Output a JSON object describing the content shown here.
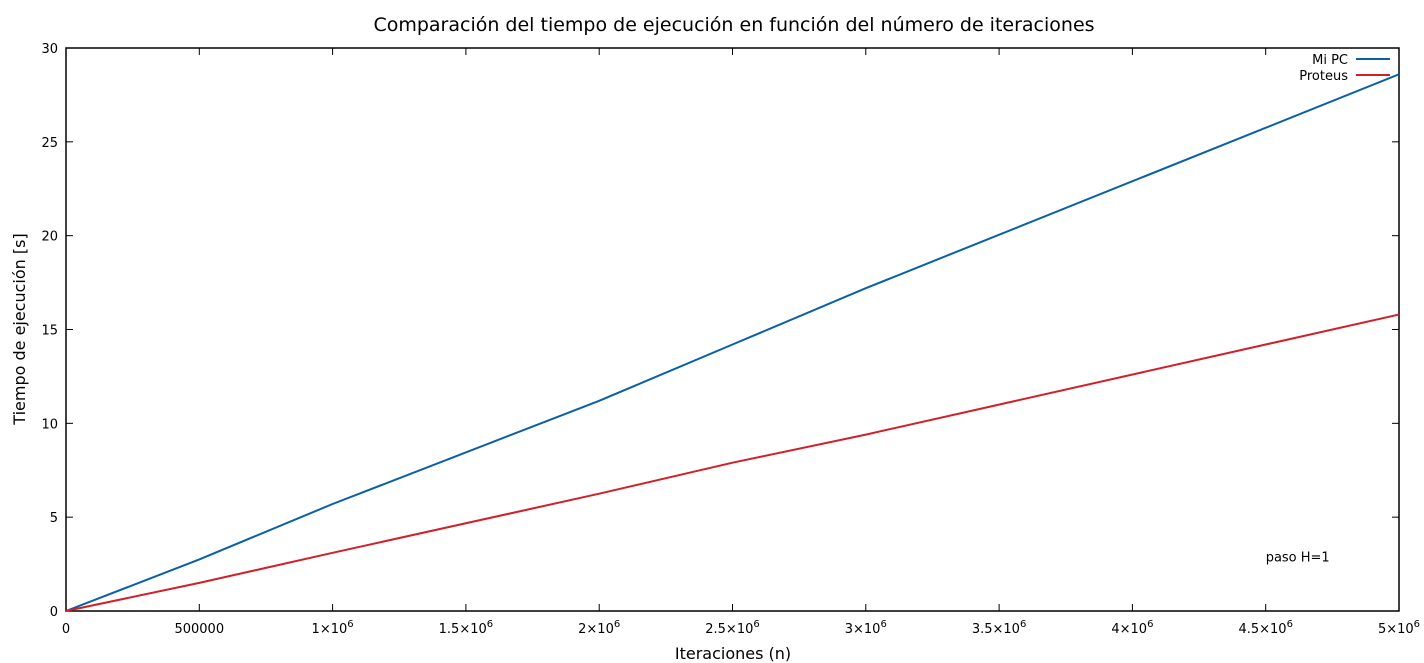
{
  "chart_data": {
    "type": "line",
    "title": "Comparación del tiempo de ejecución en función del número de iteraciones",
    "xlabel": "Iteraciones (n)",
    "ylabel": "Tiempo de ejecución [s]",
    "xlim": [
      0,
      5000000
    ],
    "ylim": [
      0,
      30
    ],
    "x_ticks": [
      {
        "value": 0,
        "label": "0",
        "sup": ""
      },
      {
        "value": 500000,
        "label": "500000",
        "sup": ""
      },
      {
        "value": 1000000,
        "label": "1×10",
        "sup": "6"
      },
      {
        "value": 1500000,
        "label": "1.5×10",
        "sup": "6"
      },
      {
        "value": 2000000,
        "label": "2×10",
        "sup": "6"
      },
      {
        "value": 2500000,
        "label": "2.5×10",
        "sup": "6"
      },
      {
        "value": 3000000,
        "label": "3×10",
        "sup": "6"
      },
      {
        "value": 3500000,
        "label": "3.5×10",
        "sup": "6"
      },
      {
        "value": 4000000,
        "label": "4×10",
        "sup": "6"
      },
      {
        "value": 4500000,
        "label": "4.5×10",
        "sup": "6"
      },
      {
        "value": 5000000,
        "label": "5×10",
        "sup": "6"
      }
    ],
    "y_ticks": [
      0,
      5,
      10,
      15,
      20,
      25,
      30
    ],
    "grid": false,
    "legend_position": "top-right",
    "series": [
      {
        "name": "Mi PC",
        "color": "#0b5fa5",
        "x": [
          0,
          500000,
          1000000,
          2000000,
          2500000,
          3000000,
          5000000
        ],
        "y": [
          0,
          2.75,
          5.7,
          11.2,
          14.2,
          17.2,
          28.6
        ]
      },
      {
        "name": "Proteus",
        "color": "#d0202a",
        "x": [
          0,
          500000,
          1000000,
          2000000,
          2500000,
          3000000,
          5000000
        ],
        "y": [
          0,
          1.5,
          3.1,
          6.25,
          7.9,
          9.4,
          15.8
        ]
      }
    ],
    "annotations": [
      {
        "text": "paso H=1",
        "x": 4500000,
        "y": 2.9
      }
    ]
  }
}
